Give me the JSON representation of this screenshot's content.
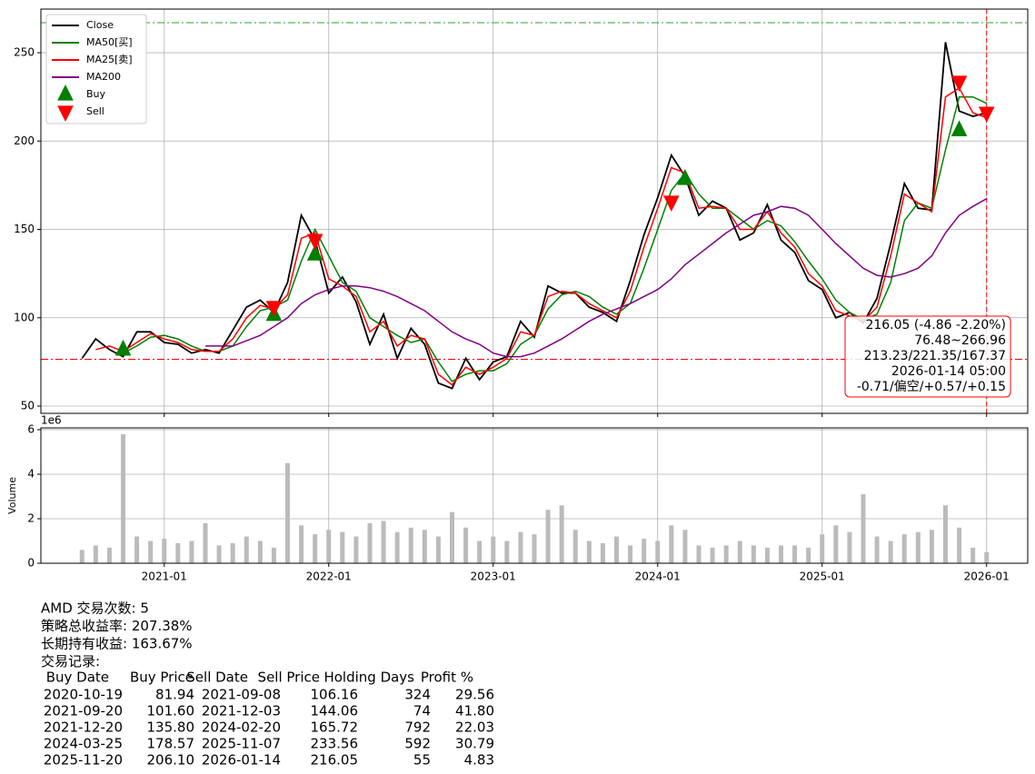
{
  "chart_data": [
    {
      "type": "line",
      "x": [
        "2020-07",
        "2020-08",
        "2020-09",
        "2020-10",
        "2020-11",
        "2020-12",
        "2021-01",
        "2021-02",
        "2021-03",
        "2021-04",
        "2021-05",
        "2021-06",
        "2021-07",
        "2021-08",
        "2021-09",
        "2021-10",
        "2021-11",
        "2021-12",
        "2022-01",
        "2022-02",
        "2022-03",
        "2022-04",
        "2022-05",
        "2022-06",
        "2022-07",
        "2022-08",
        "2022-09",
        "2022-10",
        "2022-11",
        "2022-12",
        "2023-01",
        "2023-02",
        "2023-03",
        "2023-04",
        "2023-05",
        "2023-06",
        "2023-07",
        "2023-08",
        "2023-09",
        "2023-10",
        "2023-11",
        "2023-12",
        "2024-01",
        "2024-02",
        "2024-03",
        "2024-04",
        "2024-05",
        "2024-06",
        "2024-07",
        "2024-08",
        "2024-09",
        "2024-10",
        "2024-11",
        "2024-12",
        "2025-01",
        "2025-02",
        "2025-03",
        "2025-04",
        "2025-05",
        "2025-06",
        "2025-07",
        "2025-08",
        "2025-09",
        "2025-10",
        "2025-11",
        "2025-12",
        "2026-01"
      ],
      "series": [
        {
          "name": "Close",
          "color": "#000000",
          "values": [
            77,
            88,
            82,
            78,
            92,
            92,
            86,
            85,
            80,
            82,
            80,
            93,
            106,
            110,
            103,
            120,
            158,
            144,
            114,
            123,
            109,
            85,
            102,
            77,
            94,
            85,
            63,
            60,
            77,
            65,
            75,
            78,
            98,
            89,
            118,
            114,
            114,
            106,
            103,
            98,
            121,
            147,
            168,
            192,
            180,
            158,
            166,
            162,
            144,
            148,
            164,
            144,
            137,
            121,
            116,
            100,
            103,
            97,
            111,
            142,
            176,
            162,
            161,
            256,
            217,
            214,
            216.05
          ]
        },
        {
          "name": "MA50[买]",
          "color": "#008000",
          "values": [
            null,
            null,
            null,
            80,
            84,
            89,
            90,
            88,
            84,
            81,
            81,
            84,
            95,
            104,
            106,
            110,
            132,
            150,
            135,
            120,
            115,
            100,
            95,
            90,
            86,
            88,
            75,
            64,
            68,
            70,
            70,
            74,
            85,
            90,
            105,
            113,
            115,
            112,
            106,
            102,
            108,
            128,
            150,
            172,
            182,
            170,
            162,
            162,
            156,
            150,
            155,
            152,
            143,
            132,
            122,
            110,
            103,
            99,
            102,
            120,
            155,
            165,
            162,
            195,
            225,
            225,
            221.35
          ]
        },
        {
          "name": "MA25[卖]",
          "color": "#ff0000",
          "values": [
            null,
            82,
            84,
            81,
            86,
            91,
            88,
            86,
            82,
            81,
            81,
            88,
            100,
            107,
            105,
            113,
            145,
            148,
            122,
            118,
            112,
            92,
            98,
            84,
            90,
            88,
            68,
            62,
            72,
            68,
            72,
            77,
            92,
            90,
            112,
            115,
            114,
            108,
            104,
            100,
            115,
            140,
            162,
            185,
            182,
            162,
            163,
            162,
            150,
            150,
            160,
            148,
            140,
            125,
            118,
            104,
            101,
            98,
            106,
            135,
            170,
            165,
            160,
            225,
            230,
            216,
            213.23
          ]
        },
        {
          "name": "MA200",
          "color": "#800080",
          "values": [
            null,
            null,
            null,
            null,
            null,
            null,
            null,
            null,
            null,
            84,
            84,
            84,
            87,
            90,
            95,
            100,
            108,
            113,
            116,
            118,
            118,
            117,
            115,
            112,
            108,
            104,
            98,
            92,
            88,
            85,
            80,
            78,
            78,
            80,
            84,
            88,
            93,
            98,
            102,
            105,
            108,
            112,
            116,
            122,
            130,
            136,
            142,
            148,
            153,
            158,
            160,
            163,
            162,
            158,
            150,
            142,
            135,
            128,
            124,
            123,
            125,
            128,
            135,
            148,
            158,
            163,
            167.37
          ]
        }
      ],
      "markers": [
        {
          "name": "Buy",
          "color": "#008000",
          "shape": "up",
          "x": [
            "2020-10",
            "2021-09",
            "2021-12",
            "2024-03",
            "2025-11"
          ],
          "values": [
            81.94,
            101.6,
            135.8,
            178.57,
            206.1
          ]
        },
        {
          "name": "Sell",
          "color": "#ff0000",
          "shape": "down",
          "x": [
            "2021-09",
            "2021-12",
            "2024-02",
            "2025-11",
            "2026-01"
          ],
          "values": [
            106.16,
            144.06,
            165.72,
            233.56,
            216.05
          ]
        }
      ],
      "hlines": [
        {
          "value": 266.96,
          "color": "#2ca02c"
        },
        {
          "value": 76.48,
          "color": "#ff0000"
        }
      ],
      "vline": {
        "x": "2026-01",
        "color": "#ff0000"
      },
      "annotation": {
        "color": "#ff0000",
        "lines": [
          "216.05 (-4.86 -2.20%)",
          "76.48~266.96",
          "213.23/221.35/167.37",
          "2026-01-14 05:00",
          "-0.71/偏空/+0.57/+0.15"
        ]
      },
      "xlim": [
        "2020-04",
        "2026-04"
      ],
      "xticks": [
        "2021-01",
        "2022-01",
        "2023-01",
        "2024-01",
        "2025-01",
        "2026-01"
      ],
      "ylim": [
        45.9,
        274.7
      ],
      "yticks": [
        50,
        100,
        150,
        200,
        250
      ],
      "grid": true,
      "legend": "upper left"
    },
    {
      "type": "bar",
      "ylabel": "Volume",
      "offset_label": "1e6",
      "color": "#bbbbbb",
      "x": [
        "2020-07",
        "2020-08",
        "2020-09",
        "2020-10",
        "2020-11",
        "2020-12",
        "2021-01",
        "2021-02",
        "2021-03",
        "2021-04",
        "2021-05",
        "2021-06",
        "2021-07",
        "2021-08",
        "2021-09",
        "2021-10",
        "2021-11",
        "2021-12",
        "2022-01",
        "2022-02",
        "2022-03",
        "2022-04",
        "2022-05",
        "2022-06",
        "2022-07",
        "2022-08",
        "2022-09",
        "2022-10",
        "2022-11",
        "2022-12",
        "2023-01",
        "2023-02",
        "2023-03",
        "2023-04",
        "2023-05",
        "2023-06",
        "2023-07",
        "2023-08",
        "2023-09",
        "2023-10",
        "2023-11",
        "2023-12",
        "2024-01",
        "2024-02",
        "2024-03",
        "2024-04",
        "2024-05",
        "2024-06",
        "2024-07",
        "2024-08",
        "2024-09",
        "2024-10",
        "2024-11",
        "2024-12",
        "2025-01",
        "2025-02",
        "2025-03",
        "2025-04",
        "2025-05",
        "2025-06",
        "2025-07",
        "2025-08",
        "2025-09",
        "2025-10",
        "2025-11",
        "2025-12",
        "2026-01"
      ],
      "values": [
        0.6,
        0.8,
        0.7,
        5.8,
        1.2,
        1.0,
        1.1,
        0.9,
        1.0,
        1.8,
        0.8,
        0.9,
        1.2,
        1.0,
        0.7,
        4.5,
        1.7,
        1.3,
        1.5,
        1.4,
        1.2,
        1.8,
        1.9,
        1.4,
        1.6,
        1.5,
        1.2,
        2.3,
        1.6,
        1.0,
        1.2,
        1.0,
        1.4,
        1.3,
        2.4,
        2.6,
        1.5,
        1.0,
        0.9,
        1.2,
        0.8,
        1.1,
        1.0,
        1.7,
        1.5,
        0.8,
        0.7,
        0.8,
        1.0,
        0.8,
        0.7,
        0.8,
        0.8,
        0.7,
        1.3,
        1.7,
        1.4,
        3.1,
        1.2,
        1.0,
        1.3,
        1.4,
        1.5,
        2.6,
        1.6,
        0.7,
        0.5
      ],
      "xlim": [
        "2020-04",
        "2026-04"
      ],
      "xticks": [
        "2021-01",
        "2022-01",
        "2023-01",
        "2024-01",
        "2025-01",
        "2026-01"
      ],
      "ylim": [
        0,
        6.08
      ],
      "yticks": [
        0,
        2,
        4,
        6
      ],
      "grid": true
    }
  ],
  "summary": [
    "AMD 交易次数: 5",
    "策略总收益率: 207.38%",
    "长期持有收益: 163.67%",
    "交易记录:"
  ],
  "table": {
    "header": [
      "Buy Date",
      "Buy Price",
      "Sell Date",
      "Sell Price",
      "Holding Days",
      "Profit %"
    ],
    "rows": [
      [
        "2020-10-19",
        "81.94",
        "2021-09-08",
        "106.16",
        "324",
        "29.56"
      ],
      [
        "2021-09-20",
        "101.60",
        "2021-12-03",
        "144.06",
        "74",
        "41.80"
      ],
      [
        "2021-12-20",
        "135.80",
        "2024-02-20",
        "165.72",
        "792",
        "22.03"
      ],
      [
        "2024-03-25",
        "178.57",
        "2025-11-07",
        "233.56",
        "592",
        "30.79"
      ],
      [
        "2025-11-20",
        "206.10",
        "2026-01-14",
        "216.05",
        "55",
        "4.83"
      ]
    ]
  }
}
